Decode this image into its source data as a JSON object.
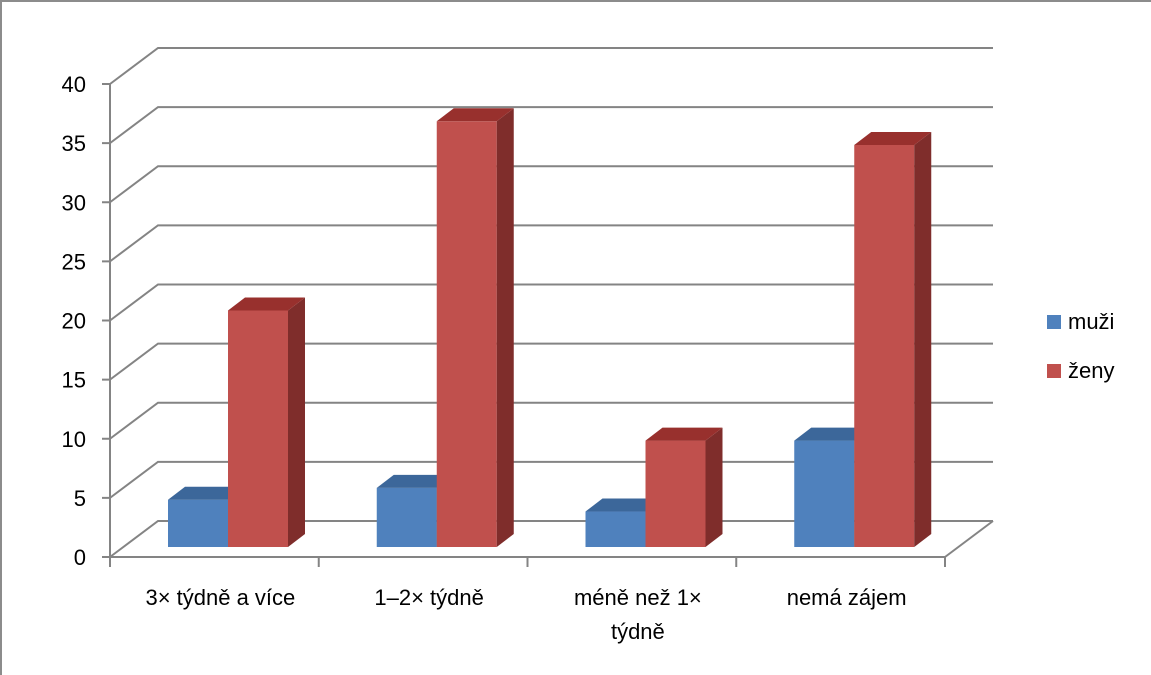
{
  "chart_data": {
    "type": "bar",
    "style": "3d-clustered-column",
    "categories": [
      [
        "3× týdně a více"
      ],
      [
        "1–2× týdně"
      ],
      [
        "méně než 1×",
        "týdně"
      ],
      [
        "nemá zájem"
      ]
    ],
    "series": [
      {
        "name": "muži",
        "values": [
          4,
          5,
          3,
          9
        ],
        "color": "#4f81bd",
        "side_color": "#385d8a",
        "top_color": "#3c679a"
      },
      {
        "name": "ženy",
        "values": [
          20,
          36,
          9,
          34
        ],
        "color": "#c0504d",
        "side_color": "#7f2d2b",
        "top_color": "#98302d"
      }
    ],
    "ylim": [
      0,
      40
    ],
    "y_ticks": [
      0,
      5,
      10,
      15,
      20,
      25,
      30,
      35,
      40
    ],
    "grid": true,
    "legend_position": "right"
  }
}
